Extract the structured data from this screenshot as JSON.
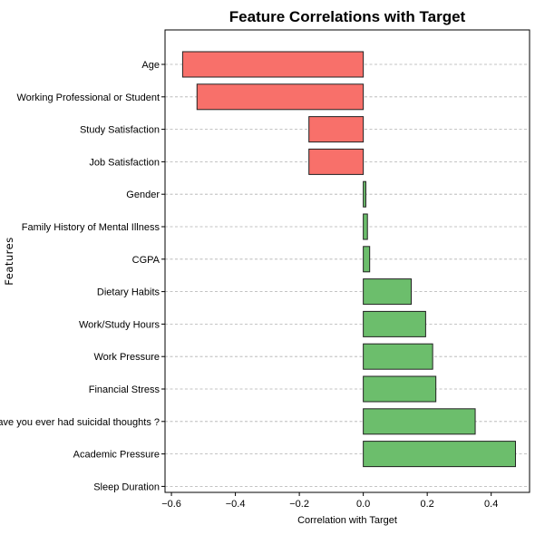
{
  "chart_data": {
    "type": "bar",
    "orientation": "horizontal",
    "title": "Feature Correlations with Target",
    "xlabel": "Correlation with Target",
    "ylabel": "Features",
    "xlim": [
      -0.62,
      0.52
    ],
    "xticks": [
      -0.6,
      -0.4,
      -0.2,
      0.0,
      0.2,
      0.4
    ],
    "xtick_labels": [
      "−0.6",
      "−0.4",
      "−0.2",
      "0.0",
      "0.2",
      "0.4"
    ],
    "grid": "y-dashed",
    "colors": {
      "negative": "#f8706a",
      "positive": "#6cbe6c"
    },
    "categories": [
      "Age",
      "Working Professional or Student",
      "Study Satisfaction",
      "Job Satisfaction",
      "Gender",
      "Family History of Mental Illness",
      "CGPA",
      "Dietary Habits",
      "Work/Study Hours",
      "Work Pressure",
      "Financial Stress",
      "Have you ever had suicidal thoughts ?",
      "Academic Pressure",
      "Sleep Duration"
    ],
    "values": [
      -0.565,
      -0.52,
      -0.17,
      -0.17,
      0.008,
      0.013,
      0.02,
      0.15,
      0.195,
      0.217,
      0.227,
      0.35,
      0.476,
      0.0
    ]
  }
}
